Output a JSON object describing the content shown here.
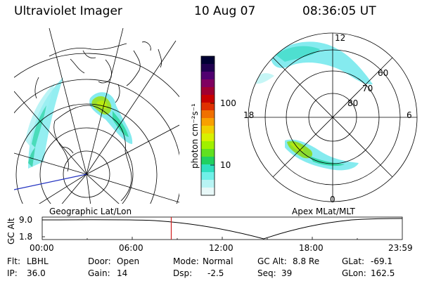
{
  "header": {
    "instrument": "Ultraviolet Imager",
    "date": "10 Aug 07",
    "time": "08:36:05 UT"
  },
  "left_panel": {
    "caption": "Geographic Lat/Lon"
  },
  "right_panel": {
    "caption": "Apex MLat/MLT",
    "mlt_labels": [
      "12",
      "18",
      "6",
      "0"
    ],
    "lat_labels": [
      "60",
      "70",
      "80"
    ]
  },
  "colorbar": {
    "label": "photon cm⁻²s⁻¹",
    "ticks": [
      "100",
      "10"
    ],
    "colors": [
      "#000033",
      "#200050",
      "#500070",
      "#800060",
      "#a00030",
      "#c80000",
      "#e03000",
      "#f07000",
      "#f8a000",
      "#f0d000",
      "#d8f000",
      "#a0f000",
      "#60e020",
      "#20d060",
      "#30e0c0",
      "#70f0e8",
      "#b8f4f4",
      "#e8f8f8"
    ]
  },
  "altitude_plot": {
    "ylabel": "GC Alt",
    "ymax_label": "9.0",
    "ymin_label": "1.8",
    "xticks": [
      "00:00",
      "06:00",
      "12:00",
      "18:00",
      "23:59"
    ],
    "current_time_hours": 8.6
  },
  "status": {
    "filter_label": "Flt:",
    "filter_value": "LBHL",
    "ip_label": "IP:",
    "ip_value": "36.0",
    "door_label": "Door:",
    "door_value": "Open",
    "gain_label": "Gain:",
    "gain_value": "14",
    "mode_label": "Mode:",
    "mode_value": "Normal",
    "dsp_label": "Dsp:",
    "dsp_value": "-2.5",
    "gcalt_label": "GC Alt:",
    "gcalt_value": "8.8 Re",
    "seq_label": "Seq:",
    "seq_value": "39",
    "glat_label": "GLat:",
    "glat_value": "-69.1",
    "glon_label": "GLon:",
    "glon_value": "162.5"
  }
}
